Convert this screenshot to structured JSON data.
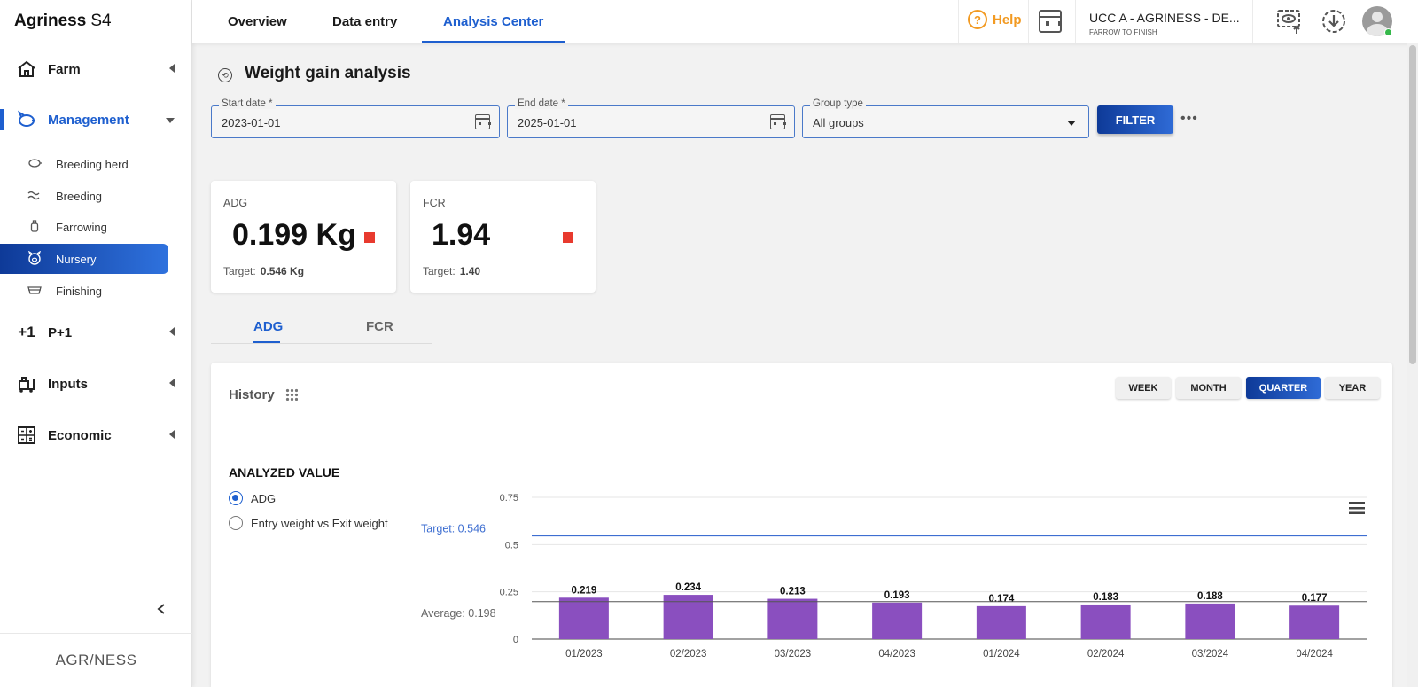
{
  "app": {
    "name": "Agriness",
    "version": "S4",
    "footer_logo": "AGR/NESS"
  },
  "top_tabs": [
    {
      "label": "Overview",
      "active": false
    },
    {
      "label": "Data entry",
      "active": false
    },
    {
      "label": "Analysis Center",
      "active": true
    }
  ],
  "header": {
    "help_label": "Help",
    "farm_name": "UCC A - AGRINESS - DE...",
    "farm_type": "FARROW TO FINISH"
  },
  "sidebar": {
    "groups": [
      {
        "label": "Farm",
        "icon": "farm-icon",
        "open": false
      },
      {
        "label": "Management",
        "icon": "pig-icon",
        "open": true,
        "items": [
          {
            "label": "Breeding herd",
            "icon": "pig-outline-icon",
            "active": false
          },
          {
            "label": "Breeding",
            "icon": "breeding-icon",
            "active": false
          },
          {
            "label": "Farrowing",
            "icon": "bottle-icon",
            "active": false
          },
          {
            "label": "Nursery",
            "icon": "piglet-icon",
            "active": true
          },
          {
            "label": "Finishing",
            "icon": "feeder-icon",
            "active": false
          }
        ]
      },
      {
        "label": "P+1",
        "icon": "plus-one-icon",
        "open": false
      },
      {
        "label": "Inputs",
        "icon": "inputs-icon",
        "open": false
      },
      {
        "label": "Economic",
        "icon": "calculator-icon",
        "open": false
      }
    ]
  },
  "page": {
    "title": "Weight gain analysis"
  },
  "filters": {
    "start_date": {
      "label": "Start date *",
      "value": "2023-01-01"
    },
    "end_date": {
      "label": "End date *",
      "value": "2025-01-01"
    },
    "group_type": {
      "label": "Group type",
      "value": "All groups"
    },
    "filter_button": "FILTER",
    "more": "•••"
  },
  "kpis": [
    {
      "label": "ADG",
      "value": "0.199 Kg",
      "target_label": "Target:",
      "target_value": "0.546 Kg",
      "status_color": "#e83a2e"
    },
    {
      "label": "FCR",
      "value": "1.94",
      "target_label": "Target:",
      "target_value": "1.40",
      "status_color": "#e83a2e"
    }
  ],
  "sub_tabs": [
    {
      "label": "ADG",
      "active": true
    },
    {
      "label": "FCR",
      "active": false
    }
  ],
  "history": {
    "title": "History",
    "periods": [
      {
        "label": "WEEK",
        "active": false
      },
      {
        "label": "MONTH",
        "active": false
      },
      {
        "label": "QUARTER",
        "active": true
      },
      {
        "label": "YEAR",
        "active": false
      }
    ],
    "analyzed_title": "ANALYZED VALUE",
    "options": [
      {
        "label": "ADG",
        "selected": true
      },
      {
        "label": "Entry weight vs Exit weight",
        "selected": false
      }
    ]
  },
  "chart_data": {
    "type": "bar",
    "categories": [
      "01/2023",
      "02/2023",
      "03/2023",
      "04/2023",
      "01/2024",
      "02/2024",
      "03/2024",
      "04/2024"
    ],
    "values": [
      0.219,
      0.234,
      0.213,
      0.193,
      0.174,
      0.183,
      0.188,
      0.177
    ],
    "value_labels": [
      "0.219",
      "0.234",
      "0.213",
      "0.193",
      "0.174",
      "0.183",
      "0.188",
      "0.177"
    ],
    "bar_color": "#8a4fbf",
    "ylim": [
      0,
      0.75
    ],
    "yticks": [
      0,
      0.25,
      0.5,
      0.75
    ],
    "ytick_labels": [
      "0",
      "0.25",
      "0.5",
      "0.75"
    ],
    "grid": true,
    "target": {
      "value": 0.546,
      "label": "Target: 0.546",
      "color": "#3d6ed1"
    },
    "average": {
      "value": 0.198,
      "label": "Average: 0.198",
      "color": "#555555"
    }
  }
}
